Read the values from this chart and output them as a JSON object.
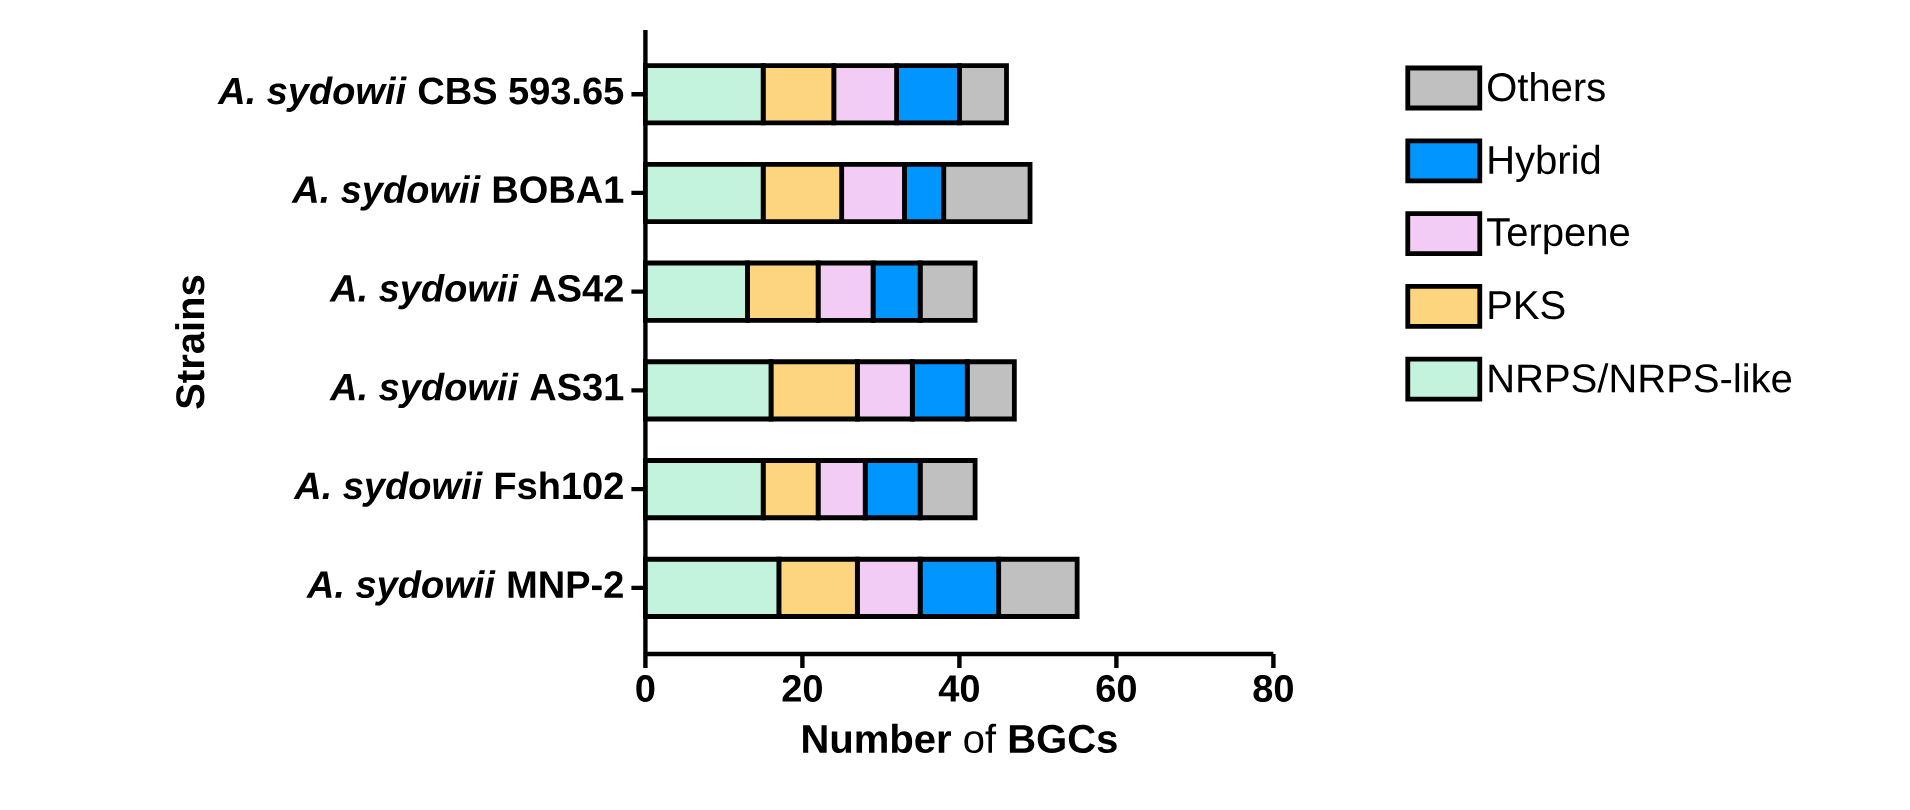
{
  "chart_data": {
    "type": "bar",
    "orientation": "horizontal",
    "stacked": true,
    "xlabel": "**Number** of **BGCs**",
    "ylabel": "Strains",
    "categories": [
      "*A. sydowii* CBS 593.65",
      "*A. sydowii* BOBA1",
      "*A. sydowii* AS42",
      "*A. sydowii* AS31",
      "*A. sydowii* Fsh102",
      "*A. sydowii* MNP-2"
    ],
    "series": [
      {
        "name": "NRPS/NRPS-like",
        "color": "#c3f3dc",
        "values": [
          15,
          15,
          13,
          16,
          15,
          17
        ]
      },
      {
        "name": "PKS",
        "color": "#fcd57e",
        "values": [
          9,
          10,
          9,
          11,
          7,
          10
        ]
      },
      {
        "name": "Terpene",
        "color": "#f2ccf5",
        "values": [
          8,
          8,
          7,
          7,
          6,
          8
        ]
      },
      {
        "name": "Hybrid",
        "color": "#0095ff",
        "values": [
          8,
          5,
          6,
          7,
          7,
          10
        ]
      },
      {
        "name": "Others",
        "color": "#c0c0c0",
        "values": [
          6,
          11,
          7,
          6,
          7,
          10
        ]
      }
    ],
    "xlim": [
      0,
      80
    ],
    "xticks": [
      0,
      20,
      40,
      60,
      80
    ],
    "legend": "right"
  }
}
